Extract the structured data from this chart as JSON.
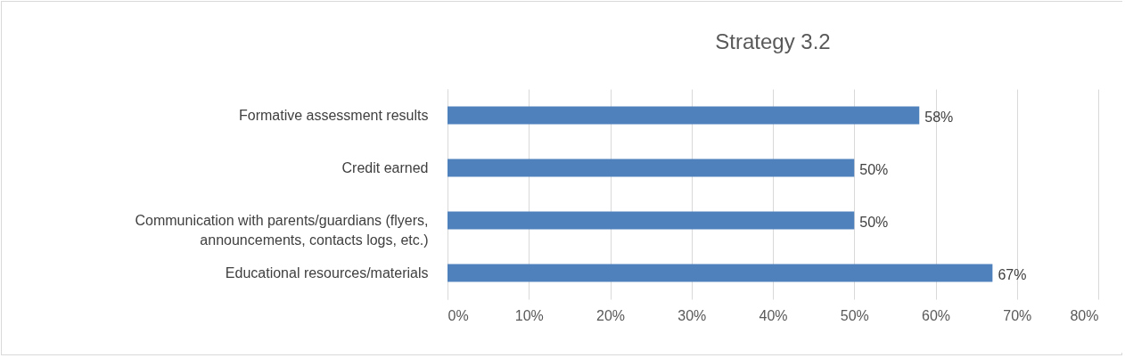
{
  "chart_data": {
    "type": "bar",
    "orientation": "horizontal",
    "title": "Strategy 3.2",
    "categories": [
      "Formative assessment results",
      "Credit earned",
      "Communication with parents/guardians (flyers, announcements, contacts logs, etc.)",
      "Educational resources/materials"
    ],
    "values": [
      58,
      50,
      50,
      67
    ],
    "value_labels": [
      "58%",
      "50%",
      "50%",
      "67%"
    ],
    "color": "#4f81bd",
    "xlim": [
      0,
      80
    ],
    "xticks": [
      {
        "value": 0,
        "label": "0%"
      },
      {
        "value": 10,
        "label": "10%"
      },
      {
        "value": 20,
        "label": "20%"
      },
      {
        "value": 30,
        "label": "30%"
      },
      {
        "value": 40,
        "label": "40%"
      },
      {
        "value": 50,
        "label": "50%"
      },
      {
        "value": 60,
        "label": "60%"
      },
      {
        "value": 70,
        "label": "70%"
      },
      {
        "value": 80,
        "label": "80%"
      }
    ],
    "grid": "x"
  }
}
